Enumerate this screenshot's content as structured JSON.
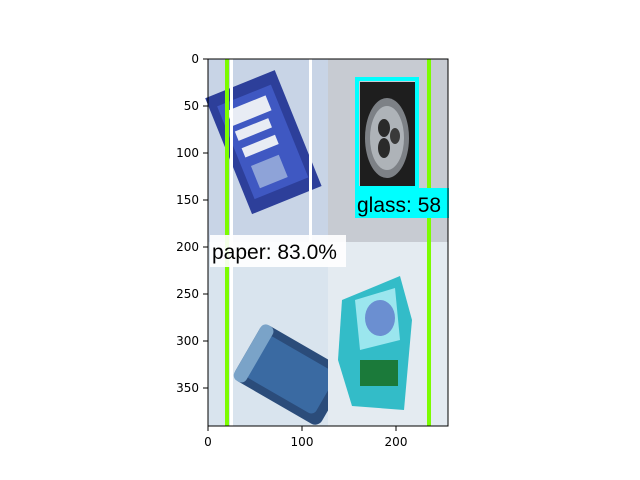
{
  "figure": {
    "x_ticks": [
      "0",
      "100",
      "200"
    ],
    "y_ticks": [
      "0",
      "50",
      "100",
      "150",
      "200",
      "250",
      "300",
      "350"
    ],
    "x_range": [
      0,
      256
    ],
    "y_range": [
      0,
      390
    ]
  },
  "image_panels": [
    {
      "name": "organic-tea-packet",
      "colors": {
        "bg": "#c8d4e6",
        "item": "#2d3f9a",
        "highlight": "#e8ecf4"
      }
    },
    {
      "name": "can-top",
      "colors": {
        "bg": "#c7cbd2",
        "item": "#1e1e1e",
        "highlight": "#d7dadd"
      }
    },
    {
      "name": "blue-can-side",
      "colors": {
        "bg": "#d9e4ee",
        "item": "#2b4c7a",
        "highlight": "#7aa3c8"
      }
    },
    {
      "name": "blue-foil-packet",
      "colors": {
        "bg": "#e4ebf1",
        "item": "#33bcc8",
        "highlight": "#9be6ee"
      }
    }
  ],
  "detections": [
    {
      "label": "paper: 83.0%",
      "color": "#ffffff"
    },
    {
      "label": "glass: 58",
      "color": "#00ffff"
    }
  ],
  "lines": {
    "green": "#7cfc00",
    "white": "#ffffff",
    "cyan": "#00ffff"
  }
}
